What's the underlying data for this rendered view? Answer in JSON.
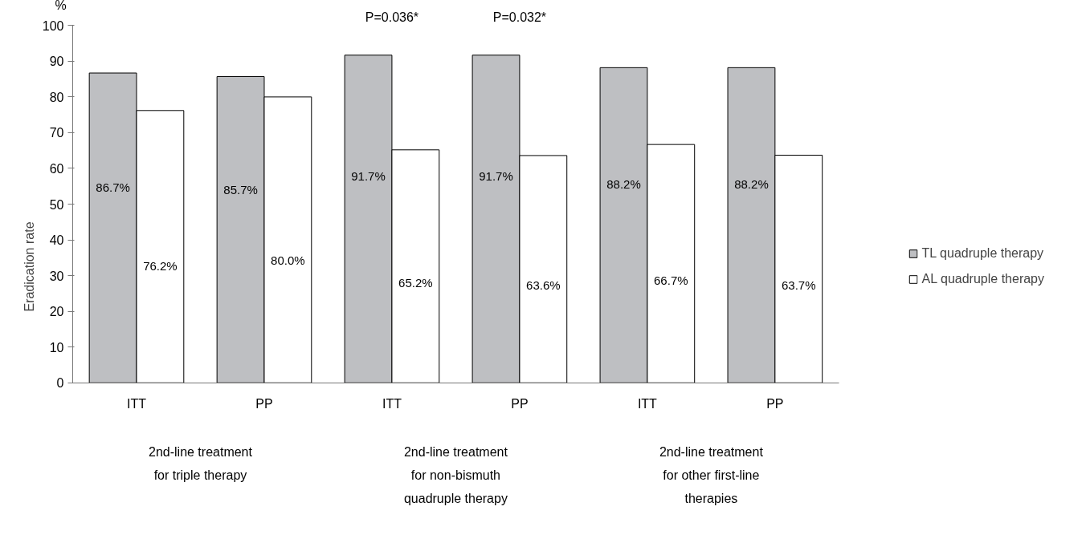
{
  "chart_data": {
    "type": "bar",
    "ylabel": "Eradication rate",
    "categories": [
      "ITT",
      "PP",
      "ITT",
      "PP",
      "ITT",
      "PP"
    ],
    "series": [
      {
        "name": "TL quadruple therapy",
        "color": "#bebfc2",
        "values": [
          86.7,
          85.7,
          91.7,
          91.7,
          88.2,
          88.2
        ],
        "value_labels": [
          "86.7%",
          "85.7%",
          "91.7%",
          "91.7%",
          "88.2%",
          "88.2%"
        ]
      },
      {
        "name": "AL quadruple therapy",
        "color": "#ffffff",
        "values": [
          76.2,
          80.0,
          65.2,
          63.6,
          66.7,
          63.7
        ],
        "value_labels": [
          "76.2%",
          "80.0%",
          "65.2%",
          "63.6%",
          "66.7%",
          "63.7%"
        ]
      }
    ],
    "ylim": [
      0,
      100
    ],
    "yticks": [
      0,
      10,
      20,
      30,
      40,
      50,
      60,
      70,
      80,
      90,
      100
    ],
    "grid": false,
    "legend": "right",
    "annotations": [
      "%",
      "P=0.036*",
      "P=0.032*",
      "2nd-line treatment\nfor triple therapy",
      "2nd-line treatment\nfor non-bismuth\nquadruple therapy",
      "2nd-line treatment\nfor other first-line\ntherapies"
    ]
  }
}
